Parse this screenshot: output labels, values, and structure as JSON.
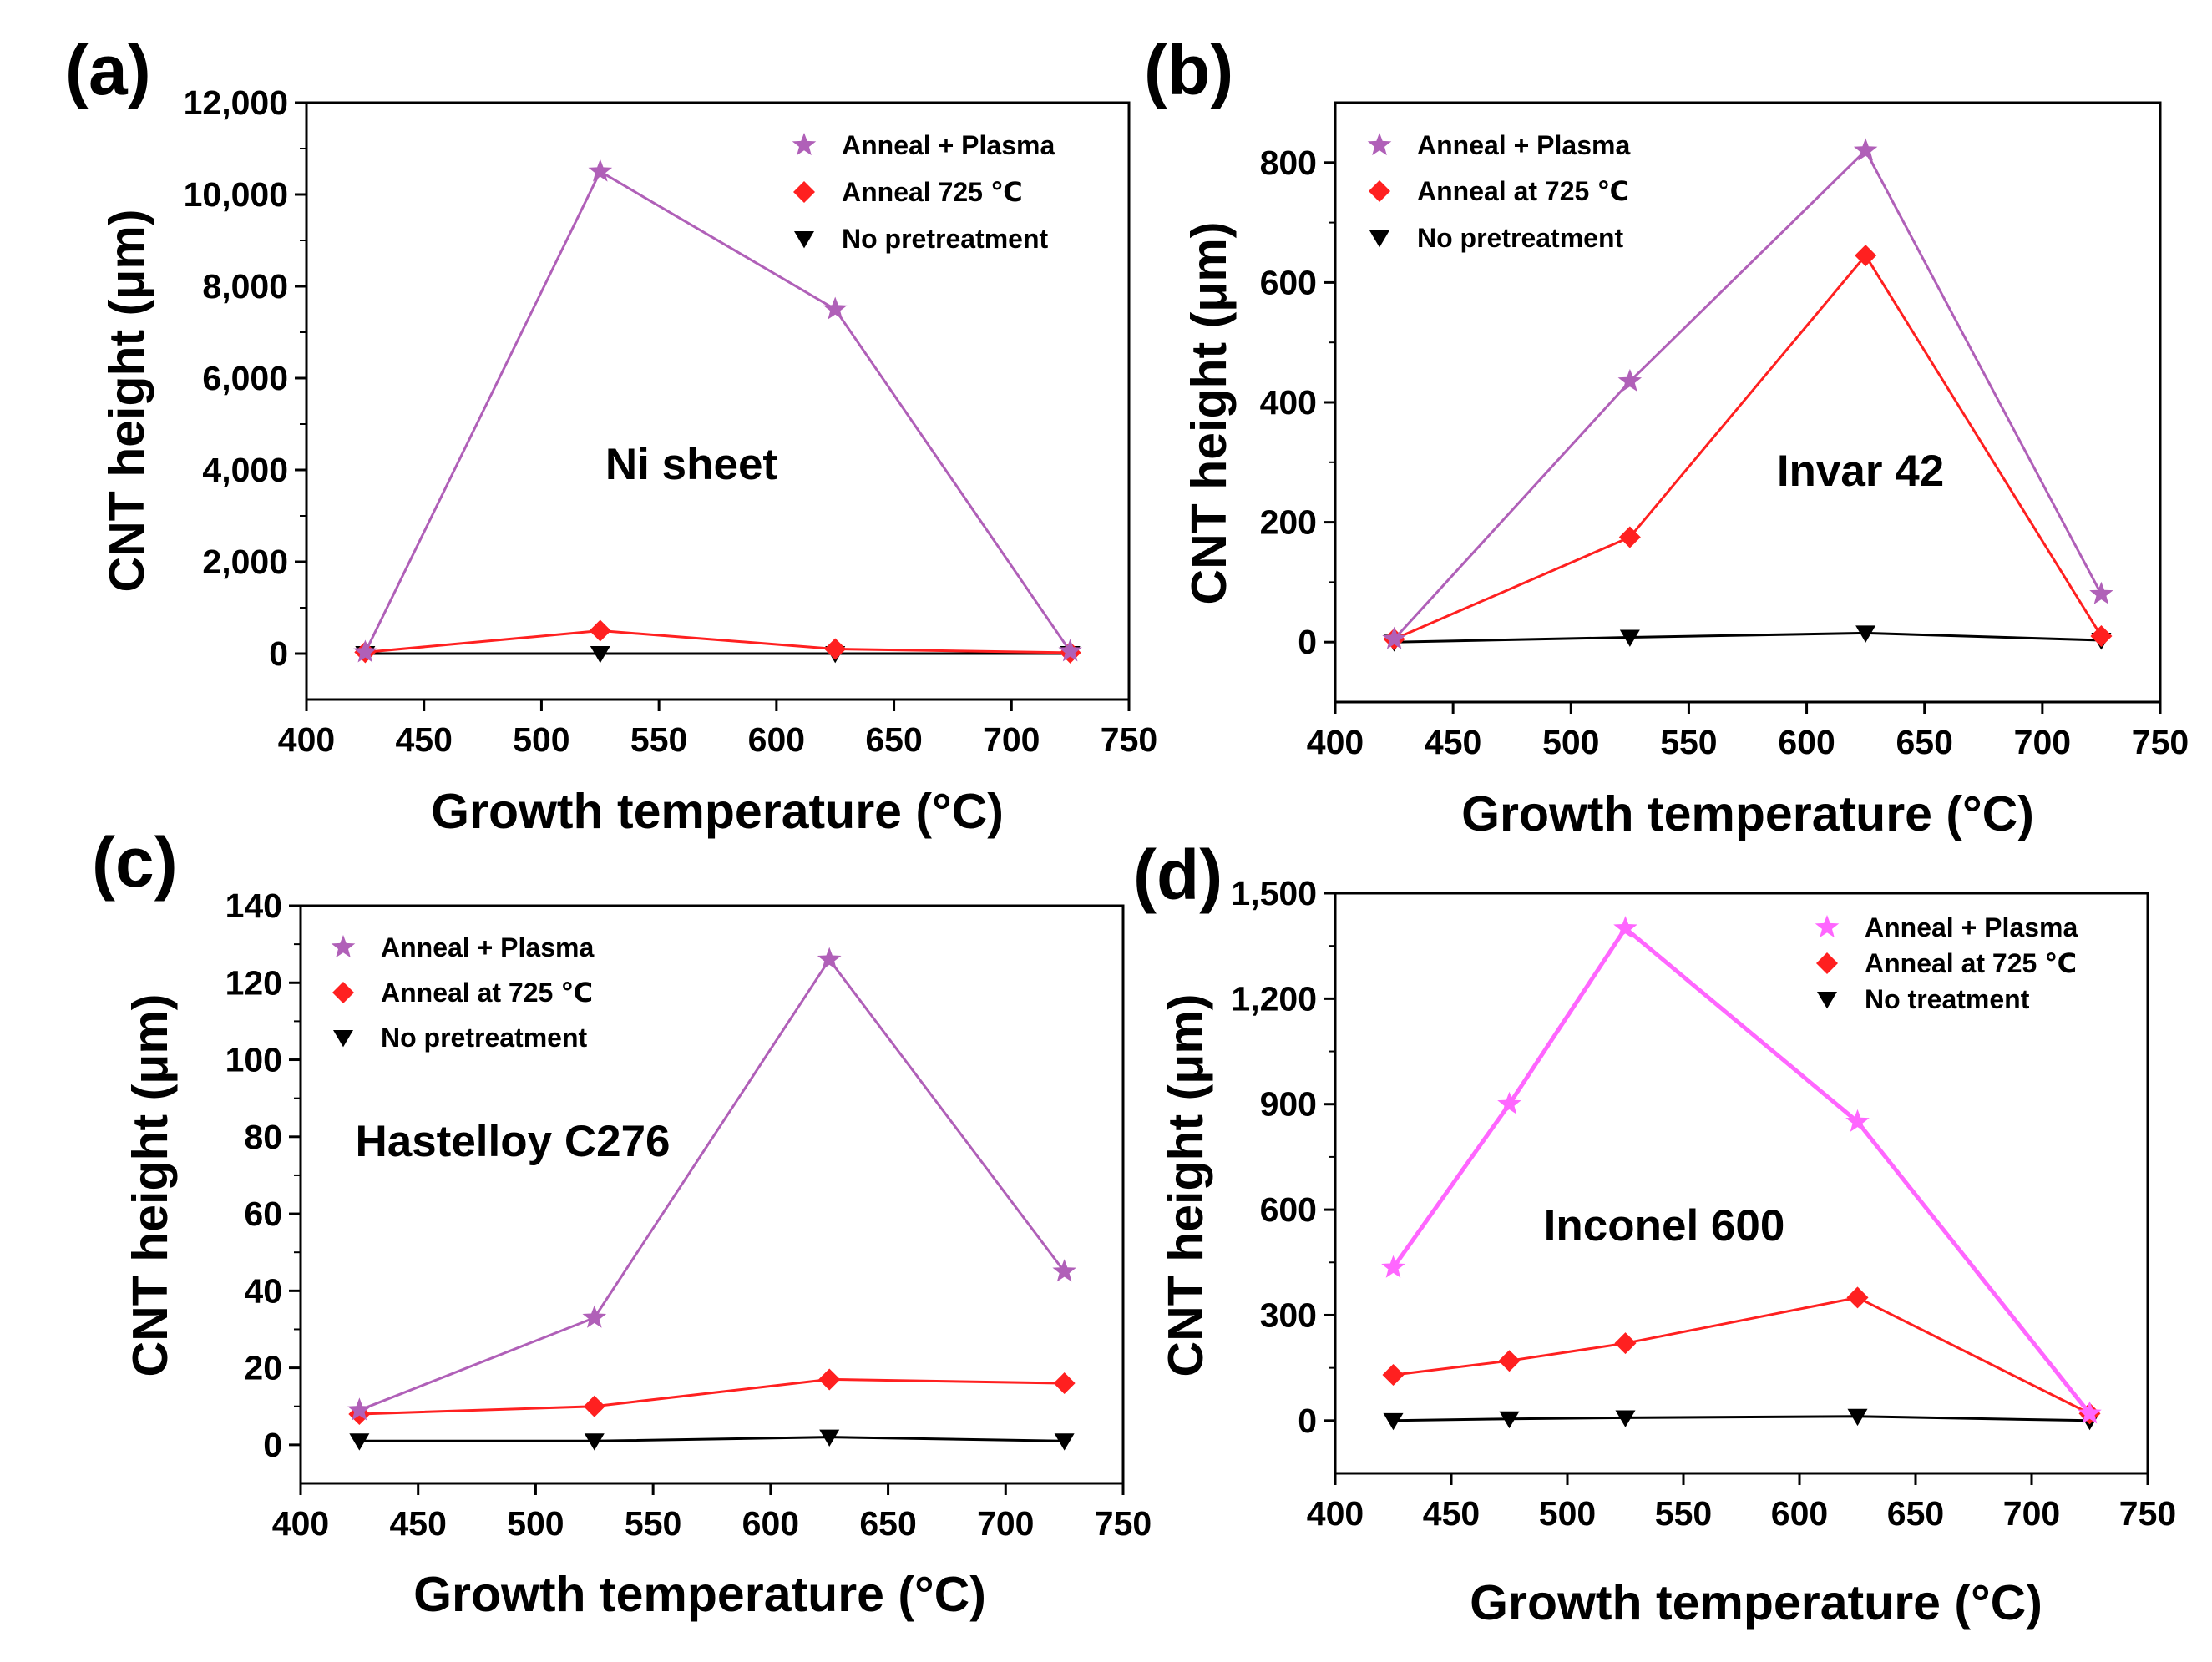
{
  "chart_data": [
    {
      "type": "line",
      "panel_label": "(a)",
      "annotation": "Ni sheet",
      "xlabel": "Growth temperature (°C)",
      "ylabel": "CNT height (μm)",
      "xlim": [
        400,
        750
      ],
      "ylim": [
        -1000,
        12000
      ],
      "xticks": [
        400,
        450,
        500,
        550,
        600,
        650,
        700,
        750
      ],
      "xtick_labels": [
        "400",
        "450",
        "500",
        "550",
        "600",
        "650",
        "700",
        "750"
      ],
      "yticks": [
        0,
        2000,
        4000,
        6000,
        8000,
        10000,
        12000
      ],
      "ytick_labels": [
        "0",
        "2,000",
        "4,000",
        "6,000",
        "8,000",
        "10,000",
        "12,000"
      ],
      "x": [
        425,
        525,
        625,
        725
      ],
      "legend_position": "top-right",
      "series": [
        {
          "name": "Anneal + Plasma",
          "marker": "star",
          "color": "#b060b8",
          "values": [
            30,
            10500,
            7500,
            50
          ]
        },
        {
          "name": "Anneal 725 ℃",
          "marker": "diamond",
          "color": "#ff2020",
          "values": [
            30,
            500,
            100,
            20
          ]
        },
        {
          "name": "No pretreatment",
          "marker": "triangle-down",
          "color": "#000000",
          "values": [
            0,
            0,
            0,
            0
          ]
        }
      ]
    },
    {
      "type": "line",
      "panel_label": "(b)",
      "annotation": "Invar 42",
      "xlabel": "Growth temperature (°C)",
      "ylabel": "CNT height (μm)",
      "xlim": [
        400,
        750
      ],
      "ylim": [
        -100,
        900
      ],
      "xticks": [
        400,
        450,
        500,
        550,
        600,
        650,
        700,
        750
      ],
      "xtick_labels": [
        "400",
        "450",
        "500",
        "550",
        "600",
        "650",
        "700",
        "750"
      ],
      "yticks": [
        0,
        200,
        400,
        600,
        800
      ],
      "ytick_labels": [
        "0",
        "200",
        "400",
        "600",
        "800"
      ],
      "x": [
        425,
        525,
        625,
        725
      ],
      "legend_position": "top-left",
      "series": [
        {
          "name": "Anneal + Plasma",
          "marker": "star",
          "color": "#b060b8",
          "values": [
            5,
            435,
            820,
            80
          ]
        },
        {
          "name": "Anneal at  725 ℃",
          "marker": "diamond",
          "color": "#ff2020",
          "values": [
            5,
            175,
            645,
            10
          ]
        },
        {
          "name": "No pretreatment",
          "marker": "triangle-down",
          "color": "#000000",
          "values": [
            0,
            8,
            15,
            3
          ]
        }
      ]
    },
    {
      "type": "line",
      "panel_label": "(c)",
      "annotation": "Hastelloy C276",
      "xlabel": "Growth temperature (°C)",
      "ylabel": "CNT height (μm)",
      "xlim": [
        400,
        750
      ],
      "ylim": [
        -10,
        140
      ],
      "xticks": [
        400,
        450,
        500,
        550,
        600,
        650,
        700,
        750
      ],
      "xtick_labels": [
        "400",
        "450",
        "500",
        "550",
        "600",
        "650",
        "700",
        "750"
      ],
      "yticks": [
        0,
        20,
        40,
        60,
        80,
        100,
        120,
        140
      ],
      "ytick_labels": [
        "0",
        "20",
        "40",
        "60",
        "80",
        "100",
        "120",
        "140"
      ],
      "x": [
        425,
        525,
        625,
        725
      ],
      "legend_position": "top-left",
      "series": [
        {
          "name": "Anneal + Plasma",
          "marker": "star",
          "color": "#b060b8",
          "values": [
            9,
            33,
            126,
            45
          ]
        },
        {
          "name": "Anneal at  725 ℃",
          "marker": "diamond",
          "color": "#ff2020",
          "values": [
            8,
            10,
            17,
            16
          ]
        },
        {
          "name": "No pretreatment",
          "marker": "triangle-down",
          "color": "#000000",
          "values": [
            1,
            1,
            2,
            1
          ]
        }
      ]
    },
    {
      "type": "line",
      "panel_label": "(d)",
      "annotation": "Inconel 600",
      "xlabel": "Growth temperature (°C)",
      "ylabel": "CNT height (μm)",
      "xlim": [
        400,
        750
      ],
      "ylim": [
        -150,
        1500
      ],
      "xticks": [
        400,
        450,
        500,
        550,
        600,
        650,
        700,
        750
      ],
      "xtick_labels": [
        "400",
        "450",
        "500",
        "550",
        "600",
        "650",
        "700",
        "750"
      ],
      "yticks": [
        0,
        300,
        600,
        900,
        1200,
        1500
      ],
      "ytick_labels": [
        "0",
        "300",
        "600",
        "900",
        "1,200",
        "1,500"
      ],
      "x": [
        425,
        475,
        525,
        625,
        725
      ],
      "legend_position": "top-right",
      "series": [
        {
          "name": "Anneal + Plasma",
          "marker": "star",
          "color": "#ff66ff",
          "values": [
            435,
            900,
            1400,
            850,
            20
          ]
        },
        {
          "name": "Anneal at  725 ℃",
          "marker": "diamond",
          "color": "#ff2020",
          "values": [
            130,
            170,
            220,
            350,
            20
          ]
        },
        {
          "name": "No treatment",
          "marker": "triangle-down",
          "color": "#000000",
          "values": [
            0,
            5,
            8,
            12,
            0
          ]
        }
      ]
    }
  ]
}
